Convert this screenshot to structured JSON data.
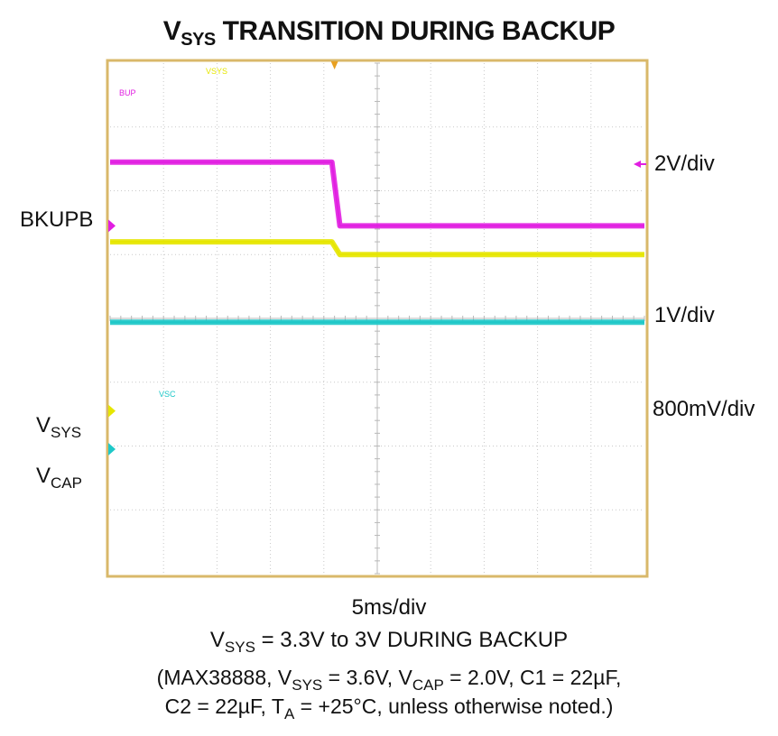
{
  "title": {
    "prefix": "V",
    "sub": "SYS",
    "rest": " TRANSITION DURING BACKUP"
  },
  "channel_labels": {
    "bkupb": "BKUPB",
    "vsys": {
      "main": "V",
      "sub": "SYS"
    },
    "vcap": {
      "main": "V",
      "sub": "CAP"
    }
  },
  "scales": {
    "ch1": "2V/div",
    "ch2": "1V/div",
    "ch3": "800mV/div"
  },
  "timebase": "5ms/div",
  "caption": {
    "pre": "V",
    "sub": "SYS",
    "post": " = 3.3V to 3V DURING  BACKUP"
  },
  "conditions": {
    "l1_a": "(MAX38888, V",
    "l1_a_sub": "SYS",
    "l1_b": " = 3.6V, V",
    "l1_b_sub": "CAP",
    "l1_c": " = 2.0V, C1 = 22µF,",
    "l2_a": "C2 = 22µF, T",
    "l2_a_sub": "A",
    "l2_b": " = +25°C, unless otherwise noted.)"
  },
  "screen_tags": {
    "bkup": "BUP",
    "vsys": "VSYS",
    "vcap": "VSC"
  },
  "chart_data": {
    "type": "line",
    "grid": true,
    "x_divisions": 10,
    "y_divisions": 8,
    "x": [
      0,
      4.15,
      4.3,
      10
    ],
    "series": [
      {
        "name": "BKUPB",
        "color": "#e11ee1",
        "values": [
          6.45,
          6.45,
          5.45,
          5.45
        ]
      },
      {
        "name": "VSYS",
        "color": "#e6e600",
        "values": [
          5.2,
          5.2,
          5.0,
          5.0
        ]
      },
      {
        "name": "VCAP",
        "color": "#1ec8c8",
        "values": [
          3.94,
          3.94,
          3.94,
          3.94
        ]
      }
    ],
    "markers": {
      "BKUPB": 5.45,
      "VSYS": 2.55,
      "VCAP": 1.95
    },
    "trigger_x": 4.2
  }
}
